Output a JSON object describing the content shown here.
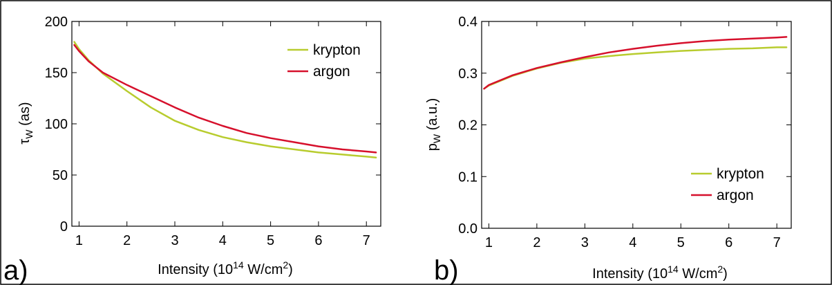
{
  "colors": {
    "krypton": "#b8cc2e",
    "argon": "#d6102c"
  },
  "chart_data": [
    {
      "type": "line",
      "panel_label": "a)",
      "xlabel": {
        "pre": "Intensity (10",
        "sup": "14",
        "mid": " W/cm",
        "sup2": "2",
        "post": ")"
      },
      "ylabel": {
        "main": "τ",
        "sub": "W",
        "post": " (as)"
      },
      "xlim": [
        0.85,
        7.3
      ],
      "ylim": [
        0,
        200
      ],
      "xticks": [
        1,
        2,
        3,
        4,
        5,
        6,
        7
      ],
      "xtick_labels": [
        "1",
        "2",
        "3",
        "4",
        "5",
        "6",
        "7"
      ],
      "yticks": [
        0,
        50,
        100,
        150,
        200
      ],
      "ytick_labels": [
        "0",
        "50",
        "100",
        "150",
        "200"
      ],
      "grid": false,
      "legend_position": "top-right",
      "series": [
        {
          "name": "krypton",
          "color_key": "krypton",
          "x": [
            0.9,
            1.0,
            1.2,
            1.5,
            2.0,
            2.5,
            3.0,
            3.5,
            4.0,
            4.5,
            5.0,
            5.5,
            6.0,
            6.5,
            7.0,
            7.2
          ],
          "y": [
            180,
            173,
            162,
            149,
            132,
            116,
            103,
            94,
            87,
            82,
            78,
            75,
            72,
            70,
            68,
            67
          ]
        },
        {
          "name": "argon",
          "color_key": "argon",
          "x": [
            0.9,
            1.0,
            1.2,
            1.5,
            2.0,
            2.5,
            3.0,
            3.5,
            4.0,
            4.5,
            5.0,
            5.5,
            6.0,
            6.5,
            7.0,
            7.2
          ],
          "y": [
            177,
            171,
            161,
            150,
            138,
            127,
            116,
            106,
            98,
            91,
            86,
            82,
            78,
            75,
            73,
            72
          ]
        }
      ]
    },
    {
      "type": "line",
      "panel_label": "b)",
      "xlabel": {
        "pre": "Intensity (10",
        "sup": "14",
        "mid": " W/cm",
        "sup2": "2",
        "post": ")"
      },
      "ylabel": {
        "main": "p",
        "sub": "W",
        "post": " (a.u.)"
      },
      "xlim": [
        0.85,
        7.3
      ],
      "ylim": [
        0,
        0.4
      ],
      "xticks": [
        1,
        2,
        3,
        4,
        5,
        6,
        7
      ],
      "xtick_labels": [
        "1",
        "2",
        "3",
        "4",
        "5",
        "6",
        "7"
      ],
      "yticks": [
        0,
        0.1,
        0.2,
        0.3,
        0.4
      ],
      "ytick_labels": [
        "0.0",
        "0.1",
        "0.2",
        "0.3",
        "0.4"
      ],
      "grid": false,
      "legend_position": "bottom-right",
      "series": [
        {
          "name": "krypton",
          "color_key": "krypton",
          "x": [
            0.9,
            1.0,
            1.5,
            2.0,
            2.5,
            3.0,
            3.5,
            4.0,
            4.5,
            5.0,
            5.5,
            6.0,
            6.5,
            7.0,
            7.2
          ],
          "y": [
            0.27,
            0.276,
            0.295,
            0.309,
            0.32,
            0.328,
            0.333,
            0.337,
            0.34,
            0.343,
            0.345,
            0.347,
            0.348,
            0.35,
            0.35
          ]
        },
        {
          "name": "argon",
          "color_key": "argon",
          "x": [
            0.9,
            1.0,
            1.5,
            2.0,
            2.5,
            3.0,
            3.5,
            4.0,
            4.5,
            5.0,
            5.5,
            6.0,
            6.5,
            7.0,
            7.2
          ],
          "y": [
            0.27,
            0.277,
            0.296,
            0.31,
            0.321,
            0.331,
            0.34,
            0.347,
            0.353,
            0.358,
            0.362,
            0.365,
            0.367,
            0.369,
            0.37
          ]
        }
      ]
    }
  ]
}
